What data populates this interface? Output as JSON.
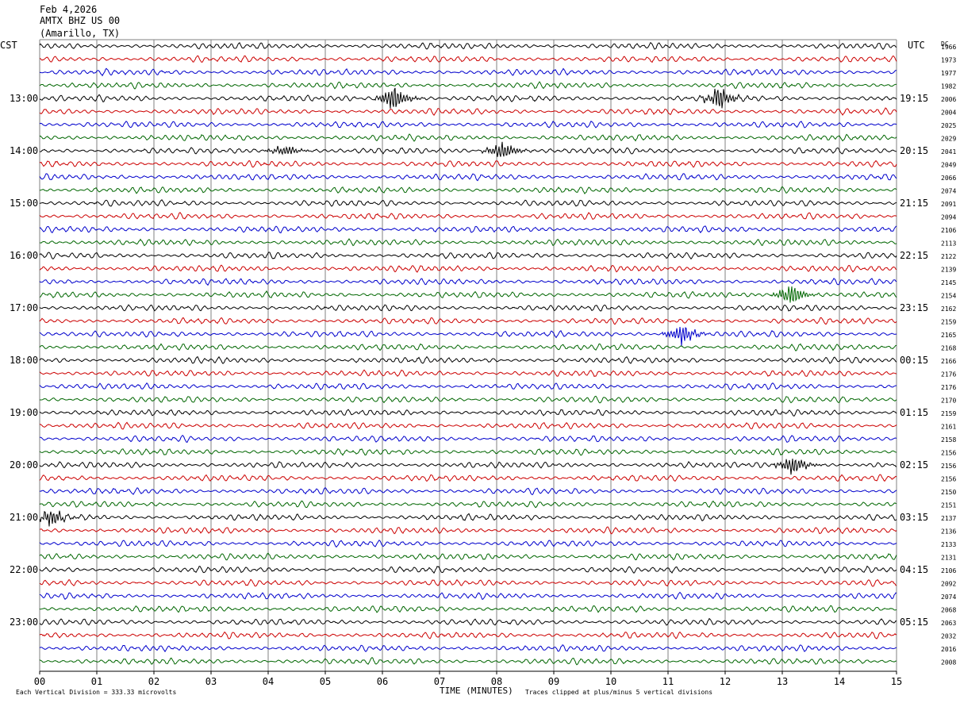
{
  "header": {
    "date": "Feb 4,2026",
    "station": "AMTX BHZ US 00",
    "location": "(Amarillo, TX)"
  },
  "labels": {
    "left_tz": "CST",
    "right_tz": "UTC",
    "dc": "DC",
    "xlabel": "TIME (MINUTES)",
    "scale_note": "Each Vertical Division =  333.33 microvolts",
    "clip_note": "Traces clipped at plus/minus 5 vertical divisions"
  },
  "colors": {
    "trace_cycle": [
      "#000000",
      "#cc0000",
      "#0000cc",
      "#006600"
    ],
    "grid": "#808080",
    "text": "#000000"
  },
  "chart_data": {
    "type": "line",
    "trace_count": 48,
    "minutes_per_trace": 15,
    "x_ticks": [
      "00",
      "01",
      "02",
      "03",
      "04",
      "05",
      "06",
      "07",
      "08",
      "09",
      "10",
      "11",
      "12",
      "13",
      "14",
      "15"
    ],
    "xlim": [
      0,
      15
    ],
    "left_hour_labels": [
      "13:00",
      "14:00",
      "15:00",
      "16:00",
      "17:00",
      "18:00",
      "19:00",
      "20:00",
      "21:00",
      "22:00",
      "23:00"
    ],
    "left_first_hour_row": 4,
    "right_hour_labels": [
      "19:15",
      "20:15",
      "21:15",
      "22:15",
      "23:15",
      "00:15",
      "01:15",
      "02:15",
      "03:15",
      "04:15",
      "05:15"
    ],
    "dc_values": [
      "1966",
      "1973",
      "1977",
      "1982",
      "2006",
      "2004",
      "2025",
      "2029",
      "2041",
      "2049",
      "2066",
      "2074",
      "2091",
      "2094",
      "2106",
      "2113",
      "2122",
      "2139",
      "2145",
      "2154",
      "2162",
      "2159",
      "2165",
      "2168",
      "2166",
      "2176",
      "2176",
      "2170",
      "2159",
      "2161",
      "2158",
      "2156",
      "2156",
      "2156",
      "2150",
      "2151",
      "2137",
      "2136",
      "2133",
      "2131",
      "2106",
      "2092",
      "2074",
      "2068",
      "2063",
      "2032",
      "2016",
      "2008"
    ],
    "events": [
      {
        "trace": 4,
        "minute": 6.2,
        "amp": 2.4
      },
      {
        "trace": 4,
        "minute": 11.9,
        "amp": 2.2
      },
      {
        "trace": 8,
        "minute": 4.3,
        "amp": 1.2
      },
      {
        "trace": 8,
        "minute": 8.1,
        "amp": 1.8
      },
      {
        "trace": 19,
        "minute": 13.15,
        "amp": 2.2
      },
      {
        "trace": 22,
        "minute": 11.25,
        "amp": 2.0
      },
      {
        "trace": 32,
        "minute": 13.2,
        "amp": 2.0
      },
      {
        "trace": 36,
        "minute": 0.2,
        "amp": 1.6
      }
    ]
  }
}
